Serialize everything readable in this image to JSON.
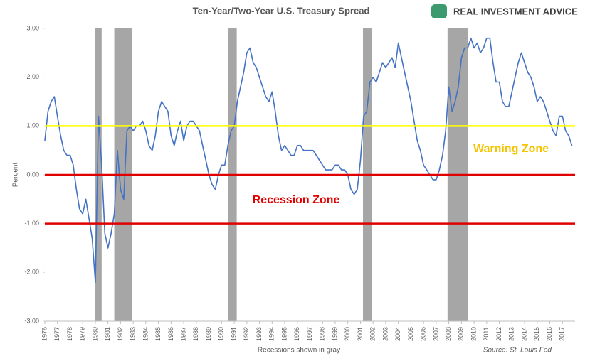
{
  "chart_data": {
    "type": "line",
    "title": "Ten-Year/Two-Year U.S. Treasury Spread",
    "logo": "REAL INVESTMENT ADVICE",
    "ylabel": "Percent",
    "xlabel": "Recessions shown in gray",
    "source": "Source: St. Louis Fed",
    "annotations": [
      "Warning Zone",
      "Recession Zone"
    ],
    "annotation_colors": [
      "#f5c400",
      "#e00000"
    ],
    "xlim": [
      1976,
      2018
    ],
    "ylim": [
      -3,
      3
    ],
    "xticks": [
      1976,
      1977,
      1978,
      1979,
      1980,
      1981,
      1982,
      1983,
      1984,
      1985,
      1986,
      1987,
      1988,
      1989,
      1990,
      1991,
      1992,
      1993,
      1994,
      1995,
      1996,
      1997,
      1998,
      1999,
      2000,
      2001,
      2002,
      2003,
      2004,
      2005,
      2006,
      2007,
      2008,
      2009,
      2010,
      2011,
      2012,
      2013,
      2014,
      2015,
      2016,
      2017
    ],
    "yticks": [
      {
        "value": 3,
        "label": "3.00"
      },
      {
        "value": 2,
        "label": "2.00"
      },
      {
        "value": 1,
        "label": "1.00"
      },
      {
        "value": 0,
        "label": "0.00"
      },
      {
        "value": -1,
        "label": "-1.00"
      },
      {
        "value": -2,
        "label": "-2.00"
      },
      {
        "value": -3,
        "label": "-3.00"
      }
    ],
    "reference_lines": [
      {
        "value": 1,
        "color": "#ffff00"
      },
      {
        "value": 0,
        "color": "#e00000"
      },
      {
        "value": -1,
        "color": "#e00000"
      }
    ],
    "recessions": [
      [
        1980.0,
        1980.5
      ],
      [
        1981.5,
        1982.9
      ],
      [
        1990.5,
        1991.2
      ],
      [
        2001.2,
        2001.9
      ],
      [
        2007.9,
        2009.5
      ]
    ],
    "recession_color": "#a6a6a6",
    "x": [
      1976,
      1976.25,
      1976.5,
      1976.75,
      1977,
      1977.25,
      1977.5,
      1977.75,
      1978,
      1978.25,
      1978.5,
      1978.75,
      1979,
      1979.25,
      1979.5,
      1979.75,
      1980,
      1980.25,
      1980.5,
      1980.75,
      1981,
      1981.25,
      1981.5,
      1981.75,
      1982,
      1982.25,
      1982.5,
      1982.75,
      1983,
      1983.25,
      1983.5,
      1983.75,
      1984,
      1984.25,
      1984.5,
      1984.75,
      1985,
      1985.25,
      1985.5,
      1985.75,
      1986,
      1986.25,
      1986.5,
      1986.75,
      1987,
      1987.25,
      1987.5,
      1987.75,
      1988,
      1988.25,
      1988.5,
      1988.75,
      1989,
      1989.25,
      1989.5,
      1989.75,
      1990,
      1990.25,
      1990.5,
      1990.75,
      1991,
      1991.25,
      1991.5,
      1991.75,
      1992,
      1992.25,
      1992.5,
      1992.75,
      1993,
      1993.25,
      1993.5,
      1993.75,
      1994,
      1994.25,
      1994.5,
      1994.75,
      1995,
      1995.25,
      1995.5,
      1995.75,
      1996,
      1996.25,
      1996.5,
      1996.75,
      1997,
      1997.25,
      1997.5,
      1997.75,
      1998,
      1998.25,
      1998.5,
      1998.75,
      1999,
      1999.25,
      1999.5,
      1999.75,
      2000,
      2000.25,
      2000.5,
      2000.75,
      2001,
      2001.25,
      2001.5,
      2001.75,
      2002,
      2002.25,
      2002.5,
      2002.75,
      2003,
      2003.25,
      2003.5,
      2003.75,
      2004,
      2004.25,
      2004.5,
      2004.75,
      2005,
      2005.25,
      2005.5,
      2005.75,
      2006,
      2006.25,
      2006.5,
      2006.75,
      2007,
      2007.25,
      2007.5,
      2007.75,
      2008,
      2008.25,
      2008.5,
      2008.75,
      2009,
      2009.25,
      2009.5,
      2009.75,
      2010,
      2010.25,
      2010.5,
      2010.75,
      2011,
      2011.25,
      2011.5,
      2011.75,
      2012,
      2012.25,
      2012.5,
      2012.75,
      2013,
      2013.25,
      2013.5,
      2013.75,
      2014,
      2014.25,
      2014.5,
      2014.75,
      2015,
      2015.25,
      2015.5,
      2015.75,
      2016,
      2016.25,
      2016.5,
      2016.75,
      2017,
      2017.25,
      2017.5,
      2017.75
    ],
    "series": [
      {
        "color": "#4472c4",
        "values": [
          0.7,
          1.3,
          1.5,
          1.6,
          1.2,
          0.8,
          0.5,
          0.4,
          0.4,
          0.2,
          -0.3,
          -0.7,
          -0.8,
          -0.5,
          -0.9,
          -1.3,
          -2.2,
          1.2,
          0.2,
          -1.2,
          -1.5,
          -1.2,
          -0.8,
          0.5,
          -0.3,
          -0.5,
          0.9,
          1.0,
          0.9,
          1.0,
          1.0,
          1.1,
          0.9,
          0.6,
          0.5,
          0.8,
          1.3,
          1.5,
          1.4,
          1.3,
          0.8,
          0.6,
          0.9,
          1.1,
          0.7,
          1.0,
          1.1,
          1.1,
          1.0,
          0.9,
          0.6,
          0.3,
          0.0,
          -0.2,
          -0.3,
          0.0,
          0.2,
          0.2,
          0.6,
          0.9,
          1.0,
          1.5,
          1.8,
          2.1,
          2.5,
          2.6,
          2.3,
          2.2,
          2.0,
          1.8,
          1.6,
          1.5,
          1.7,
          1.3,
          0.8,
          0.5,
          0.6,
          0.5,
          0.4,
          0.4,
          0.6,
          0.6,
          0.5,
          0.5,
          0.5,
          0.5,
          0.4,
          0.3,
          0.2,
          0.1,
          0.1,
          0.1,
          0.2,
          0.2,
          0.1,
          0.1,
          0.0,
          -0.3,
          -0.4,
          -0.3,
          0.3,
          1.2,
          1.3,
          1.9,
          2.0,
          1.9,
          2.1,
          2.3,
          2.2,
          2.3,
          2.4,
          2.2,
          2.7,
          2.4,
          2.1,
          1.8,
          1.5,
          1.1,
          0.7,
          0.5,
          0.2,
          0.1,
          0.0,
          -0.1,
          -0.1,
          0.1,
          0.4,
          0.9,
          1.8,
          1.3,
          1.5,
          1.8,
          2.4,
          2.6,
          2.6,
          2.8,
          2.6,
          2.7,
          2.5,
          2.6,
          2.8,
          2.8,
          2.3,
          1.9,
          1.9,
          1.5,
          1.4,
          1.4,
          1.7,
          2.0,
          2.3,
          2.5,
          2.3,
          2.1,
          2.0,
          1.8,
          1.5,
          1.6,
          1.5,
          1.3,
          1.1,
          0.9,
          0.8,
          1.2,
          1.2,
          0.9,
          0.8,
          0.6
        ]
      }
    ]
  }
}
